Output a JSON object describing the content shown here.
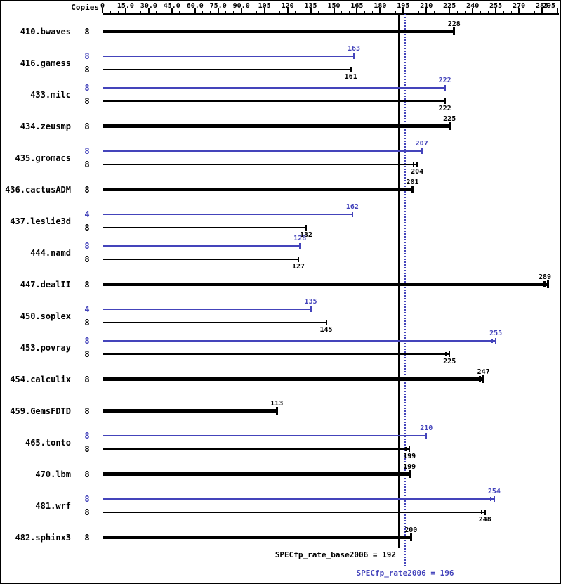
{
  "chart_data": {
    "type": "bar",
    "orientation": "horizontal",
    "copies_header": "Copies",
    "colors": {
      "base": "#000000",
      "peak": "#4444bb",
      "background": "#ffffff"
    },
    "axis": {
      "min": 0,
      "max": 295,
      "minor_tick_step": 5,
      "ticks": [
        {
          "value": 0,
          "label": "0"
        },
        {
          "value": 15,
          "label": "15.0"
        },
        {
          "value": 30,
          "label": "30.0"
        },
        {
          "value": 45,
          "label": "45.0"
        },
        {
          "value": 60,
          "label": "60.0"
        },
        {
          "value": 75,
          "label": "75.0"
        },
        {
          "value": 90,
          "label": "90.0"
        },
        {
          "value": 105,
          "label": "105"
        },
        {
          "value": 120,
          "label": "120"
        },
        {
          "value": 135,
          "label": "135"
        },
        {
          "value": 150,
          "label": "150"
        },
        {
          "value": 165,
          "label": "165"
        },
        {
          "value": 180,
          "label": "180"
        },
        {
          "value": 195,
          "label": "195"
        },
        {
          "value": 210,
          "label": "210"
        },
        {
          "value": 225,
          "label": "225"
        },
        {
          "value": 240,
          "label": "240"
        },
        {
          "value": 255,
          "label": "255"
        },
        {
          "value": 270,
          "label": "270"
        },
        {
          "value": 285,
          "label": "285"
        },
        {
          "value": 295,
          "label": "295"
        }
      ]
    },
    "benchmarks": [
      {
        "name": "410.bwaves",
        "bars": [
          {
            "run": "base",
            "copies": 8,
            "value": 228,
            "bold": true,
            "double_tick": false
          }
        ]
      },
      {
        "name": "416.gamess",
        "bars": [
          {
            "run": "peak",
            "copies": 8,
            "value": 163,
            "bold": false,
            "double_tick": false
          },
          {
            "run": "base",
            "copies": 8,
            "value": 161,
            "bold": false,
            "double_tick": false
          }
        ]
      },
      {
        "name": "433.milc",
        "bars": [
          {
            "run": "peak",
            "copies": 8,
            "value": 222,
            "bold": false,
            "double_tick": false
          },
          {
            "run": "base",
            "copies": 8,
            "value": 222,
            "bold": false,
            "double_tick": false
          }
        ]
      },
      {
        "name": "434.zeusmp",
        "bars": [
          {
            "run": "base",
            "copies": 8,
            "value": 225,
            "bold": true,
            "double_tick": false
          }
        ]
      },
      {
        "name": "435.gromacs",
        "bars": [
          {
            "run": "peak",
            "copies": 8,
            "value": 207,
            "bold": false,
            "double_tick": false
          },
          {
            "run": "base",
            "copies": 8,
            "value": 204,
            "bold": false,
            "double_tick": true
          }
        ]
      },
      {
        "name": "436.cactusADM",
        "bars": [
          {
            "run": "base",
            "copies": 8,
            "value": 201,
            "bold": true,
            "double_tick": false
          }
        ]
      },
      {
        "name": "437.leslie3d",
        "bars": [
          {
            "run": "peak",
            "copies": 4,
            "value": 162,
            "bold": false,
            "double_tick": false
          },
          {
            "run": "base",
            "copies": 8,
            "value": 132,
            "bold": false,
            "double_tick": false
          }
        ]
      },
      {
        "name": "444.namd",
        "bars": [
          {
            "run": "peak",
            "copies": 8,
            "value": 128,
            "bold": false,
            "double_tick": false
          },
          {
            "run": "base",
            "copies": 8,
            "value": 127,
            "bold": false,
            "double_tick": false
          }
        ]
      },
      {
        "name": "447.dealII",
        "bars": [
          {
            "run": "base",
            "copies": 8,
            "value": 289,
            "bold": true,
            "double_tick": true
          }
        ]
      },
      {
        "name": "450.soplex",
        "bars": [
          {
            "run": "peak",
            "copies": 4,
            "value": 135,
            "bold": false,
            "double_tick": false
          },
          {
            "run": "base",
            "copies": 8,
            "value": 145,
            "bold": false,
            "double_tick": false
          }
        ]
      },
      {
        "name": "453.povray",
        "bars": [
          {
            "run": "peak",
            "copies": 8,
            "value": 255,
            "bold": false,
            "double_tick": true
          },
          {
            "run": "base",
            "copies": 8,
            "value": 225,
            "bold": false,
            "double_tick": true
          }
        ]
      },
      {
        "name": "454.calculix",
        "bars": [
          {
            "run": "base",
            "copies": 8,
            "value": 247,
            "bold": true,
            "double_tick": true
          }
        ]
      },
      {
        "name": "459.GemsFDTD",
        "bars": [
          {
            "run": "base",
            "copies": 8,
            "value": 113,
            "bold": true,
            "double_tick": false
          }
        ]
      },
      {
        "name": "465.tonto",
        "bars": [
          {
            "run": "peak",
            "copies": 8,
            "value": 210,
            "bold": false,
            "double_tick": false
          },
          {
            "run": "base",
            "copies": 8,
            "value": 199,
            "bold": false,
            "double_tick": true
          }
        ]
      },
      {
        "name": "470.lbm",
        "bars": [
          {
            "run": "base",
            "copies": 8,
            "value": 199,
            "bold": true,
            "double_tick": false
          }
        ]
      },
      {
        "name": "481.wrf",
        "bars": [
          {
            "run": "peak",
            "copies": 8,
            "value": 254,
            "bold": false,
            "double_tick": true
          },
          {
            "run": "base",
            "copies": 8,
            "value": 248,
            "bold": false,
            "double_tick": true
          }
        ]
      },
      {
        "name": "482.sphinx3",
        "bars": [
          {
            "run": "base",
            "copies": 8,
            "value": 200,
            "bold": true,
            "double_tick": false
          }
        ]
      }
    ],
    "reference_lines": [
      {
        "name": "base",
        "label": "SPECfp_rate_base2006 = 192",
        "value": 192,
        "style": "solid",
        "color": "#000000"
      },
      {
        "name": "peak",
        "label": "SPECfp_rate2006 = 196",
        "value": 196,
        "style": "dotted",
        "color": "#4444bb"
      }
    ]
  }
}
